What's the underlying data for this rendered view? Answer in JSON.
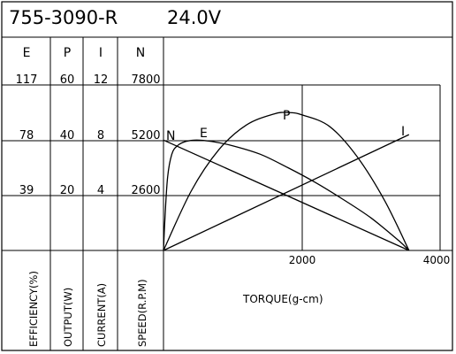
{
  "title": "755-3090-R",
  "voltage": "24.0V",
  "colors": {
    "line": "#000000",
    "background": "#ffffff"
  },
  "column_headers": [
    "E",
    "P",
    "I",
    "N"
  ],
  "ticks": {
    "E": [
      "117",
      "78",
      "39"
    ],
    "P": [
      "60",
      "40",
      "20"
    ],
    "I": [
      "12",
      "8",
      "4"
    ],
    "N": [
      "7800",
      "5200",
      "2600"
    ]
  },
  "axis_titles": {
    "E": "EFFICIENCY(%)",
    "P": "OUTPUT(W)",
    "I": "CURRENT(A)",
    "N": "SPEED(R.P.M)"
  },
  "x_axis": {
    "label": "TORQUE(g-cm)",
    "ticks": [
      "2000",
      "4000"
    ]
  },
  "chart_data": {
    "type": "line",
    "title": "755-3090-R",
    "subtitle": "24.0V",
    "xlabel": "TORQUE(g-cm)",
    "xlim": [
      0,
      4000
    ],
    "grid": true,
    "axes": {
      "E": {
        "label": "EFFICIENCY(%)",
        "range": [
          0,
          117
        ],
        "ticks": [
          117,
          78,
          39
        ]
      },
      "P": {
        "label": "OUTPUT(W)",
        "range": [
          0,
          60
        ],
        "ticks": [
          60,
          40,
          20
        ]
      },
      "I": {
        "label": "CURRENT(A)",
        "range": [
          0,
          12
        ],
        "ticks": [
          12,
          8,
          4
        ]
      },
      "N": {
        "label": "SPEED(R.P.M)",
        "range": [
          0,
          7800
        ],
        "ticks": [
          7800,
          5200,
          2600
        ]
      }
    },
    "series": [
      {
        "name": "N",
        "axis": "N",
        "x": [
          0,
          3550
        ],
        "y": [
          5200,
          0
        ]
      },
      {
        "name": "I",
        "axis": "I",
        "x": [
          0,
          3550
        ],
        "y": [
          0,
          8.4
        ]
      },
      {
        "name": "P",
        "axis": "P",
        "x": [
          0,
          400,
          800,
          1200,
          1600,
          1800,
          2000,
          2400,
          2800,
          3200,
          3550
        ],
        "y": [
          0,
          21.5,
          36.5,
          45.5,
          49.5,
          50,
          49.2,
          45,
          34,
          18,
          0
        ]
      },
      {
        "name": "E",
        "axis": "E",
        "x": [
          0,
          20,
          60,
          120,
          200,
          320,
          480,
          700,
          1000,
          1400,
          1800,
          2200,
          2600,
          3000,
          3400,
          3550
        ],
        "y": [
          0,
          22,
          52,
          68,
          74,
          77,
          78,
          77,
          74,
          68,
          58.5,
          48,
          36,
          23,
          7,
          0
        ]
      }
    ]
  }
}
